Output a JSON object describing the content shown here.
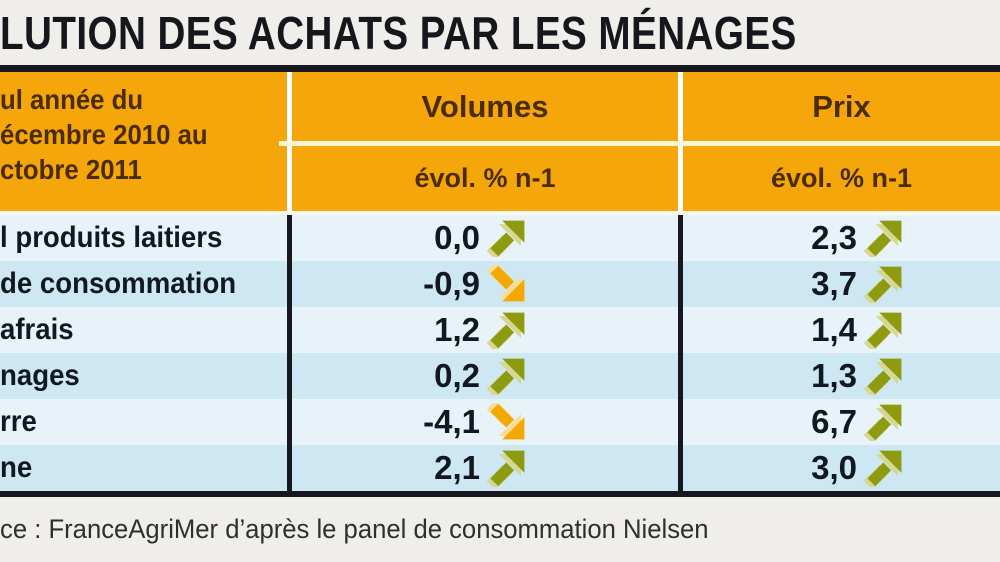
{
  "title": "LUTION DES ACHATS PAR LES MÉNAGES",
  "header": {
    "period_lines": [
      "ul année du",
      "écembre 2010 au",
      "ctobre 2011"
    ],
    "col_volumes": "Volumes",
    "col_prix": "Prix",
    "sub_volumes": "évol. % n-1",
    "sub_prix": "évol. % n-1"
  },
  "rows": [
    {
      "label": "l produits laitiers",
      "volume": "0,0",
      "volume_trend": "up",
      "prix": "2,3",
      "prix_trend": "up"
    },
    {
      "label": "de consommation",
      "volume": "-0,9",
      "volume_trend": "down",
      "prix": "3,7",
      "prix_trend": "up"
    },
    {
      "label": "afrais",
      "volume": "1,2",
      "volume_trend": "up",
      "prix": "1,4",
      "prix_trend": "up"
    },
    {
      "label": "nages",
      "volume": "0,2",
      "volume_trend": "up",
      "prix": "1,3",
      "prix_trend": "up"
    },
    {
      "label": "rre",
      "volume": "-4,1",
      "volume_trend": "down",
      "prix": "6,7",
      "prix_trend": "up"
    },
    {
      "label": "ne",
      "volume": "2,1",
      "volume_trend": "up",
      "prix": "3,0",
      "prix_trend": "up"
    }
  ],
  "source": "ce : FranceAgriMer d’après le panel de consommation Nielsen",
  "colors": {
    "header_bg": "#f4a60a",
    "header_text": "#4b2c00",
    "row_light": "#e8f3f9",
    "row_blue": "#cde8f3",
    "rule_dark": "#17171f",
    "arrow_up": "#8e9a10",
    "arrow_up_highlight": "#d6d795",
    "arrow_down": "#f3a802",
    "arrow_down_highlight": "#f8dc9b"
  },
  "chart_data": {
    "type": "table",
    "title": "LUTION DES ACHATS PAR LES MÉNAGES",
    "period": "ul année du écembre 2010 au ctobre 2011",
    "columns": [
      "Volumes évol. % n-1",
      "Prix évol. % n-1"
    ],
    "categories": [
      "l produits laitiers",
      "de consommation",
      "afrais",
      "nages",
      "rre",
      "ne"
    ],
    "series": [
      {
        "name": "Volumes évol. % n-1",
        "values": [
          0.0,
          -0.9,
          1.2,
          0.2,
          -4.1,
          2.1
        ],
        "trends": [
          "up",
          "down",
          "up",
          "up",
          "down",
          "up"
        ]
      },
      {
        "name": "Prix évol. % n-1",
        "values": [
          2.3,
          3.7,
          1.4,
          1.3,
          6.7,
          3.0
        ],
        "trends": [
          "up",
          "up",
          "up",
          "up",
          "up",
          "up"
        ]
      }
    ],
    "source": "ce : FranceAgriMer d’après le panel de consommation Nielsen"
  }
}
